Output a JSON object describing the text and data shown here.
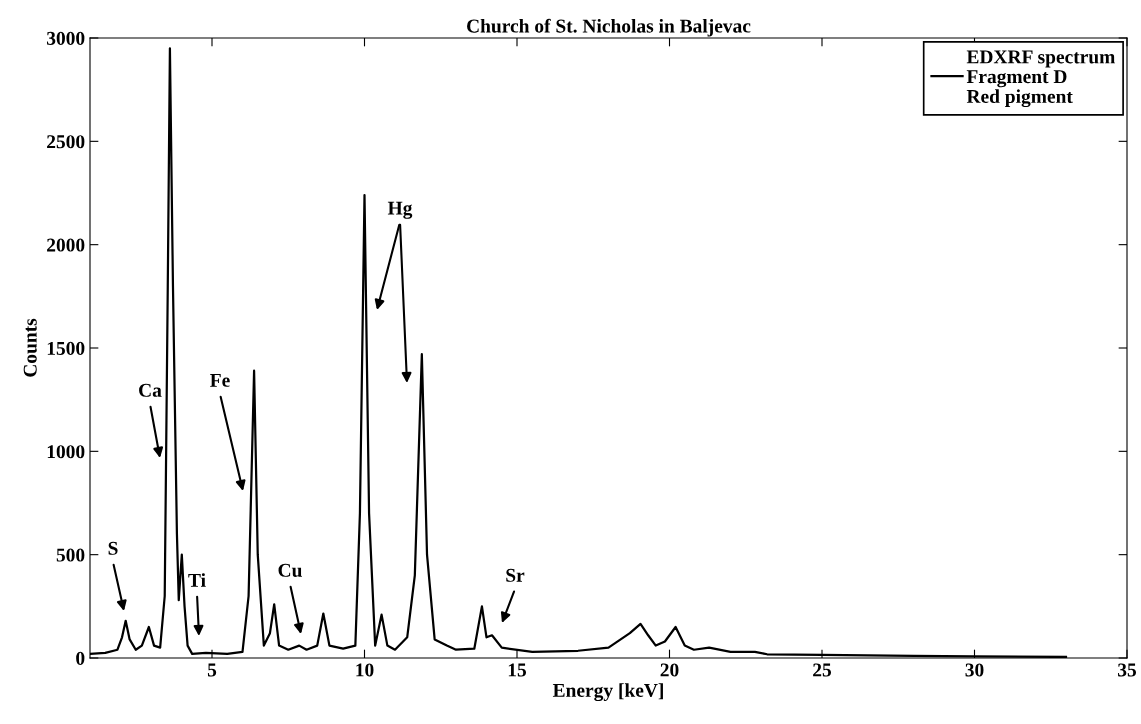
{
  "chart_data": {
    "type": "line",
    "title": "Church of St. Nicholas in Baljevac",
    "xlabel": "Energy [keV]",
    "ylabel": "Counts",
    "legend_title": "EDXRF spectrum",
    "series": [
      {
        "name": "Fragment D",
        "color": "#000000",
        "x": [
          1.0,
          1.5,
          1.9,
          2.05,
          2.17,
          2.3,
          2.5,
          2.7,
          2.93,
          3.1,
          3.3,
          3.45,
          3.55,
          3.62,
          3.72,
          3.85,
          3.91,
          4.01,
          4.1,
          4.2,
          4.35,
          4.8,
          5.5,
          6.0,
          6.2,
          6.38,
          6.5,
          6.7,
          6.9,
          7.04,
          7.2,
          7.5,
          7.86,
          8.1,
          8.45,
          8.65,
          8.85,
          9.3,
          9.7,
          9.85,
          10.0,
          10.15,
          10.35,
          10.56,
          10.75,
          11.0,
          11.4,
          11.65,
          11.88,
          12.05,
          12.3,
          12.7,
          13.0,
          13.6,
          13.85,
          14.0,
          14.18,
          14.5,
          15.5,
          17.0,
          18.0,
          18.7,
          19.05,
          19.3,
          19.55,
          19.85,
          20.2,
          20.5,
          20.8,
          21.3,
          22.0,
          22.8,
          23.2,
          25.0,
          28.0,
          30.0,
          33.0
        ],
        "values": [
          20,
          25,
          40,
          100,
          180,
          90,
          40,
          60,
          150,
          60,
          50,
          300,
          1800,
          2950,
          1800,
          600,
          280,
          500,
          250,
          60,
          20,
          25,
          20,
          30,
          300,
          1390,
          500,
          60,
          120,
          260,
          60,
          40,
          60,
          40,
          60,
          215,
          60,
          45,
          60,
          700,
          2240,
          700,
          60,
          210,
          60,
          40,
          100,
          400,
          1470,
          500,
          90,
          60,
          40,
          45,
          250,
          100,
          110,
          50,
          30,
          35,
          50,
          120,
          165,
          110,
          60,
          80,
          150,
          60,
          40,
          50,
          30,
          30,
          18,
          15,
          10,
          8,
          5
        ]
      }
    ],
    "annotations": [
      "S",
      "Ca",
      "Ti",
      "Fe",
      "Cu",
      "Hg",
      "Sr",
      "Red pigment"
    ],
    "xlim": [
      1,
      35
    ],
    "xticks": [
      5,
      10,
      15,
      20,
      25,
      30,
      35
    ],
    "ylim": [
      0,
      3000
    ],
    "yticks": [
      0,
      500,
      1000,
      1500,
      2000,
      2500,
      3000
    ],
    "grid": false,
    "legend": "top right",
    "marker": "none",
    "line_style": "solid"
  }
}
